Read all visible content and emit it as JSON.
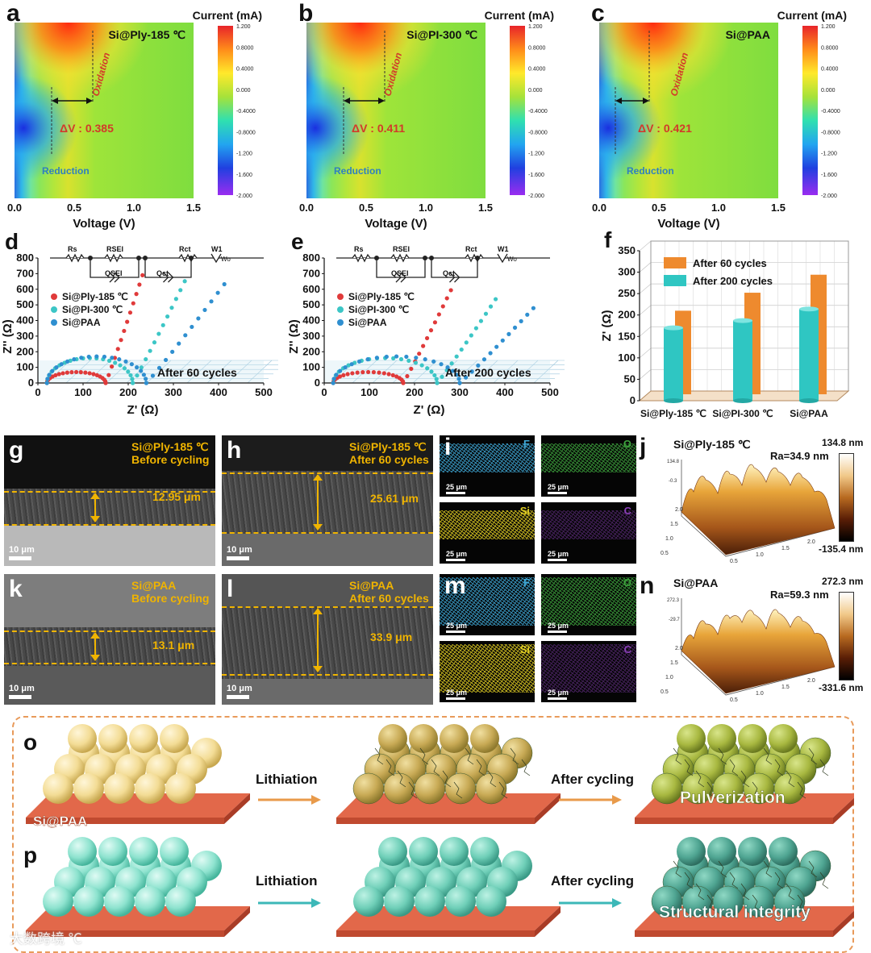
{
  "panel_labels": [
    "a",
    "b",
    "c",
    "d",
    "e",
    "f",
    "g",
    "h",
    "i",
    "j",
    "k",
    "l",
    "m",
    "n",
    "o",
    "p"
  ],
  "cv_maps": [
    {
      "title": "Si@Ply-185 ℃",
      "delta": "ΔV : 0.385",
      "oxidation": "Oxidation",
      "reduction": "Reduction",
      "cbar_title": "Current (mA)"
    },
    {
      "title": "Si@PI-300 ℃",
      "delta": "ΔV : 0.411",
      "oxidation": "Oxidation",
      "reduction": "Reduction",
      "cbar_title": "Current (mA)"
    },
    {
      "title": "Si@PAA",
      "delta": "ΔV : 0.421",
      "oxidation": "Oxidation",
      "reduction": "Reduction",
      "cbar_title": "Current (mA)"
    }
  ],
  "cbar_ticks": [
    "1.200",
    "0.8000",
    "0.4000",
    "0.000",
    "-0.4000",
    "-0.8000",
    "-1.200",
    "-1.600",
    "-2.000"
  ],
  "cv_xticks": [
    "0.0",
    "0.5",
    "1.0",
    "1.5"
  ],
  "cv_xlabel": "Voltage (V)",
  "eis": [
    {
      "caption": "After 60 cycles",
      "legend": [
        "Si@Ply-185 ℃",
        "Si@PI-300 ℃",
        "Si@PAA"
      ]
    },
    {
      "caption": "After 200 cycles",
      "legend": [
        "Si@Ply-185 ℃",
        "Si@PI-300 ℃",
        "Si@PAA"
      ]
    }
  ],
  "eis_yticks": [
    "800",
    "700",
    "600",
    "500",
    "400",
    "300",
    "200",
    "100",
    "0"
  ],
  "eis_xticks": [
    "0",
    "100",
    "200",
    "300",
    "400",
    "500"
  ],
  "eis_xlabel": "Z' (Ω)",
  "eis_ylabel": "Z'' (Ω)",
  "circuit": {
    "rs": "Rs",
    "rsei": "RSEI",
    "qsei": "QSEI",
    "rct": "Rct",
    "qct": "Qct",
    "w": "W1",
    "wo": "Wo"
  },
  "chart_data": [
    {
      "type": "heatmap",
      "title": "Si@Ply-185 ℃",
      "xlabel": "Voltage (V)",
      "zlabel": "Current (mA)",
      "xlim": [
        0,
        1.5
      ],
      "zlim": [
        -2.0,
        1.2
      ],
      "annotations": [
        "ΔV : 0.385",
        "Oxidation",
        "Reduction"
      ],
      "peaks": {
        "reduction_v": 0.17,
        "oxidation_v": 0.55,
        "delta_v": 0.385
      }
    },
    {
      "type": "heatmap",
      "title": "Si@PI-300 ℃",
      "xlabel": "Voltage (V)",
      "zlabel": "Current (mA)",
      "xlim": [
        0,
        1.5
      ],
      "zlim": [
        -2.0,
        1.2
      ],
      "annotations": [
        "ΔV : 0.411",
        "Oxidation",
        "Reduction"
      ],
      "peaks": {
        "reduction_v": 0.16,
        "oxidation_v": 0.57,
        "delta_v": 0.411
      }
    },
    {
      "type": "heatmap",
      "title": "Si@PAA",
      "xlabel": "Voltage (V)",
      "zlabel": "Current (mA)",
      "xlim": [
        0,
        1.5
      ],
      "zlim": [
        -2.0,
        1.2
      ],
      "annotations": [
        "ΔV : 0.421",
        "Oxidation",
        "Reduction"
      ],
      "peaks": {
        "reduction_v": 0.13,
        "oxidation_v": 0.55,
        "delta_v": 0.421
      }
    },
    {
      "type": "scatter",
      "xlabel": "Z' (Ω)",
      "ylabel": "Z'' (Ω)",
      "xlim": [
        0,
        500
      ],
      "ylim": [
        0,
        800
      ],
      "annotation": "After 60 cycles",
      "series": [
        {
          "name": "Si@Ply-185 ℃",
          "color": "#e03a3a",
          "semicircle_end": 150,
          "tail_end": [
            235,
            720
          ]
        },
        {
          "name": "Si@PI-300 ℃",
          "color": "#3cc6c6",
          "semicircle_end": 210,
          "tail_end": [
            330,
            680
          ]
        },
        {
          "name": "Si@PAA",
          "color": "#2f8fd0",
          "semicircle_end": 240,
          "tail_end": [
            420,
            660
          ]
        }
      ]
    },
    {
      "type": "scatter",
      "xlabel": "Z' (Ω)",
      "ylabel": "Z'' (Ω)",
      "xlim": [
        0,
        500
      ],
      "ylim": [
        0,
        800
      ],
      "annotation": "After 200 cycles",
      "series": [
        {
          "name": "Si@Ply-185 ℃",
          "color": "#e03a3a",
          "semicircle_end": 175,
          "tail_end": [
            285,
            620
          ]
        },
        {
          "name": "Si@PI-300 ℃",
          "color": "#3cc6c6",
          "semicircle_end": 250,
          "tail_end": [
            385,
            560
          ]
        },
        {
          "name": "Si@PAA",
          "color": "#2f8fd0",
          "semicircle_end": 300,
          "tail_end": [
            470,
            500
          ]
        }
      ]
    },
    {
      "type": "bar",
      "ylabel": "Z' (Ω)",
      "ylim": [
        0,
        350
      ],
      "categories": [
        "Si@Ply-185 ℃",
        "Si@PI-300 ℃",
        "Si@PAA"
      ],
      "series": [
        {
          "name": "After 60 cycles",
          "color": "#ee8a2e",
          "values": [
            195,
            237,
            279
          ]
        },
        {
          "name": "After 200 cycles",
          "color": "#2fc6c2",
          "values": [
            170,
            187,
            214
          ]
        }
      ]
    }
  ],
  "f_chart": {
    "ylabel": "Z' (Ω)",
    "yticks": [
      "350",
      "300",
      "250",
      "200",
      "150",
      "100",
      "50",
      "0"
    ],
    "legend": [
      "After 60 cycles",
      "After 200 cycles"
    ],
    "categories": [
      "Si@Ply-185 ℃",
      "Si@PI-300 ℃",
      "Si@PAA"
    ]
  },
  "sem": {
    "g": {
      "label1": "Si@Ply-185 ℃",
      "label2": "Before cycling",
      "thickness": "12.95 μm",
      "scale": "10 μm"
    },
    "h": {
      "label1": "Si@Ply-185 ℃",
      "label2": "After 60 cycles",
      "thickness": "25.61 μm",
      "scale": "10 μm"
    },
    "k": {
      "label1": "Si@PAA",
      "label2": "Before cycling",
      "thickness": "13.1 μm",
      "scale": "10 μm"
    },
    "l": {
      "label1": "Si@PAA",
      "label2": "After 60 cycles",
      "thickness": "33.9 μm",
      "scale": "10 μm"
    }
  },
  "eds": {
    "scale": "25 μm",
    "elements": [
      {
        "name": "F",
        "color": "#3fa9d8"
      },
      {
        "name": "O",
        "color": "#3da33d"
      },
      {
        "name": "Si",
        "color": "#e3d023"
      },
      {
        "name": "C",
        "color": "#8a3fb8"
      }
    ]
  },
  "afm": {
    "j": {
      "title": "Si@Ply-185 ℃",
      "ra": "Ra=34.9 nm",
      "max": "134.8 nm",
      "min": "-135.4 nm",
      "zmax": "134.8",
      "zmid": "-0.3",
      "ticks": [
        "0.5",
        "1.0",
        "1.5",
        "2.0"
      ]
    },
    "n": {
      "title": "Si@PAA",
      "ra": "Ra=59.3 nm",
      "max": "272.3 nm",
      "min": "-331.6 nm",
      "zmax": "272.3",
      "zmid": "-29.7",
      "ticks": [
        "0.5",
        "1.0",
        "1.5",
        "2.0"
      ]
    }
  },
  "schematic": {
    "o": {
      "sample": "Si@PAA",
      "step1": "Lithiation",
      "step2": "After cycling",
      "result": "Pulverization"
    },
    "p": {
      "step1": "Lithiation",
      "step2": "After cycling",
      "result": "Structural integrity"
    }
  },
  "watermark": "大数跨境 ℃",
  "colors": {
    "orange": "#ee8a2e",
    "teal": "#2fc6c2",
    "sem_label": "#f0b400",
    "delta": "#d23a2a"
  }
}
